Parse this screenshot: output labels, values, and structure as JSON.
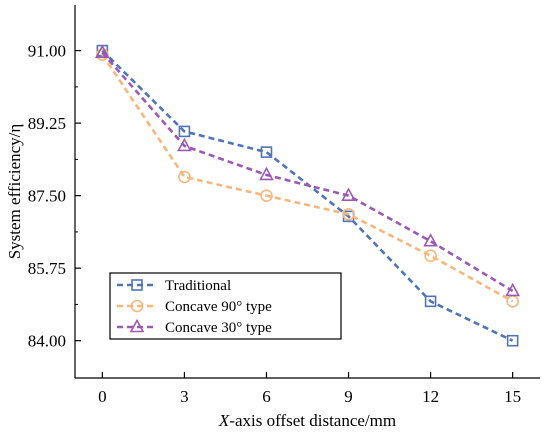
{
  "chart_data": {
    "type": "line",
    "x": [
      0,
      3,
      6,
      9,
      12,
      15
    ],
    "x_ticks": [
      "0",
      "3",
      "6",
      "9",
      "12",
      "15"
    ],
    "y_ticks": [
      "84.00",
      "85.75",
      "87.50",
      "89.25",
      "91.00"
    ],
    "xlim": [
      -1,
      16
    ],
    "ylim": [
      83.1,
      92.1
    ],
    "xlabel_italic": "X",
    "xlabel_rest": "-axis offset distance/mm",
    "ylabel": "System efficiency/η",
    "legend_position": "bottom-left",
    "grid": false,
    "series": [
      {
        "name": "Traditional",
        "values": [
          91.0,
          89.05,
          88.55,
          87.0,
          84.95,
          84.0
        ],
        "color": "#4f74b8",
        "marker": "square"
      },
      {
        "name": "Concave 90° type",
        "values": [
          90.9,
          87.95,
          87.5,
          87.05,
          86.05,
          84.95
        ],
        "color": "#f7b77c",
        "marker": "circle"
      },
      {
        "name": "Concave 30° type",
        "values": [
          90.95,
          88.7,
          88.0,
          87.5,
          86.4,
          85.2
        ],
        "color": "#9b59b6",
        "marker": "triangle"
      }
    ]
  }
}
